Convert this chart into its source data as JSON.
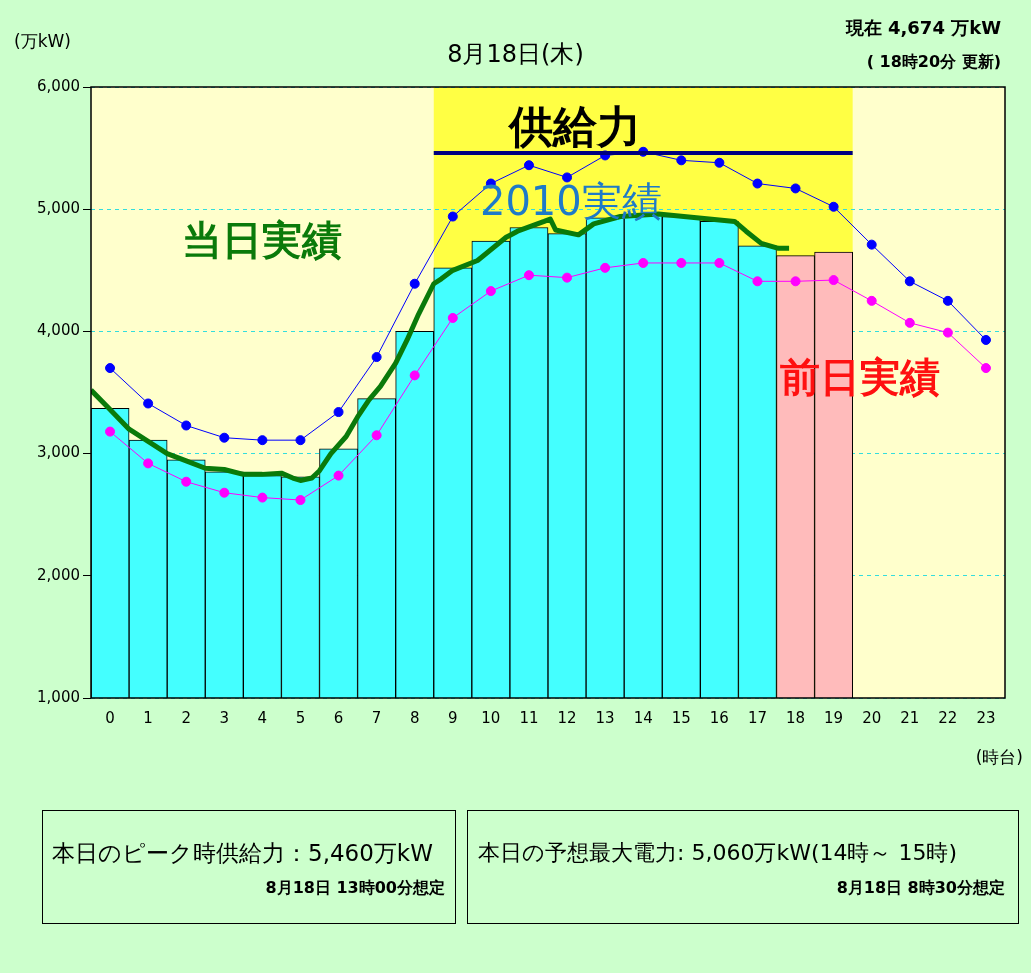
{
  "chart_data": {
    "type": "bar",
    "title": "8月18日(木)",
    "xlabel": "(時台)",
    "ylabel": "(万kW)",
    "x": [
      0.5,
      1.5,
      2.5,
      3.5,
      4.5,
      5.5,
      6.5,
      7.5,
      8.5,
      9.5,
      10.5,
      11.5,
      12.5,
      13.5,
      14.5,
      15.5,
      16.5,
      17.5,
      18.5,
      19.5,
      20.5,
      21.5,
      22.5,
      23.5
    ],
    "xlim": [
      0,
      24
    ],
    "xticks": [
      {
        "value": 0.5,
        "label": "0"
      },
      {
        "value": 1.5,
        "label": "1"
      },
      {
        "value": 2.5,
        "label": "2"
      },
      {
        "value": 3.5,
        "label": "3"
      },
      {
        "value": 4.5,
        "label": "4"
      },
      {
        "value": 5.5,
        "label": "5"
      },
      {
        "value": 6.5,
        "label": "6"
      },
      {
        "value": 7.5,
        "label": "7"
      },
      {
        "value": 8.5,
        "label": "8"
      },
      {
        "value": 9.5,
        "label": "9"
      },
      {
        "value": 10.5,
        "label": "10"
      },
      {
        "value": 11.5,
        "label": "11"
      },
      {
        "value": 12.5,
        "label": "12"
      },
      {
        "value": 13.5,
        "label": "13"
      },
      {
        "value": 14.5,
        "label": "14"
      },
      {
        "value": 15.5,
        "label": "15"
      },
      {
        "value": 16.5,
        "label": "16"
      },
      {
        "value": 17.5,
        "label": "17"
      },
      {
        "value": 18.5,
        "label": "18"
      },
      {
        "value": 19.5,
        "label": "19"
      },
      {
        "value": 20.5,
        "label": "20"
      },
      {
        "value": 21.5,
        "label": "21"
      },
      {
        "value": 22.5,
        "label": "22"
      },
      {
        "value": 23.5,
        "label": "23"
      }
    ],
    "ylim": [
      1000,
      6000
    ],
    "yticks": [
      {
        "value": 1000,
        "label": "1,000"
      },
      {
        "value": 2000,
        "label": "2,000"
      },
      {
        "value": 3000,
        "label": "3,000"
      },
      {
        "value": 4000,
        "label": "4,000"
      },
      {
        "value": 5000,
        "label": "5,000"
      },
      {
        "value": 6000,
        "label": "6,000"
      }
    ],
    "grid": "y",
    "legend": false,
    "marker": "circle",
    "bands": [
      {
        "axis": "x",
        "from": 0,
        "to": 24,
        "color": "#ffffcc"
      },
      {
        "axis": "x",
        "from": 9,
        "to": 20,
        "color": "#ffff44"
      }
    ],
    "series": [
      {
        "colors": [
          "#44ffff",
          "#44ffff",
          "#44ffff",
          "#44ffff",
          "#44ffff",
          "#44ffff",
          "#44ffff",
          "#44ffff",
          "#44ffff",
          "#44ffff",
          "#44ffff",
          "#44ffff",
          "#44ffff",
          "#44ffff",
          "#44ffff",
          "#44ffff",
          "#44ffff",
          "#44ffff",
          "#ffbbbb",
          "#ffbbbb",
          null,
          null,
          null,
          null
        ],
        "values": [
          3370,
          3110,
          2950,
          2850,
          2820,
          2810,
          3040,
          3450,
          4000,
          4520,
          4740,
          4850,
          4800,
          4930,
          4950,
          4940,
          4900,
          4700,
          4620,
          4650,
          null,
          null,
          null,
          null
        ]
      },
      {
        "name": "2010実績",
        "type": "line",
        "color": "#0000ff",
        "values": [
          3700,
          3410,
          3230,
          3130,
          3110,
          3110,
          3340,
          3790,
          4390,
          4940,
          5210,
          5360,
          5260,
          5440,
          5470,
          5400,
          5380,
          5210,
          5170,
          5020,
          4710,
          4410,
          4250,
          3930
        ]
      },
      {
        "name": "前日実績",
        "type": "line",
        "color": "#ff00ff",
        "values": [
          3180,
          2920,
          2770,
          2680,
          2640,
          2620,
          2820,
          3150,
          3640,
          4110,
          4330,
          4460,
          4440,
          4520,
          4560,
          4560,
          4560,
          4410,
          4410,
          4420,
          4250,
          4070,
          3990,
          3700
        ]
      },
      {
        "name": "当日実績",
        "type": "line",
        "color": "#0a7a0a",
        "marker": "none",
        "x": [
          0,
          0.5,
          1,
          1.5,
          2,
          2.5,
          3,
          3.5,
          4,
          4.5,
          5,
          5.3,
          5.5,
          5.8,
          6,
          6.3,
          6.7,
          7,
          7.3,
          7.6,
          8,
          8.3,
          8.6,
          9,
          9.2,
          9.5,
          10.15,
          10.9,
          11.2,
          11.9,
          12.06,
          12.2,
          12.8,
          13.2,
          13.9,
          14.9,
          15.9,
          16.9,
          17.2,
          17.6,
          18.05,
          18.33
        ],
        "values": [
          3520,
          3360,
          3200,
          3100,
          3000,
          2940,
          2880,
          2870,
          2830,
          2830,
          2840,
          2800,
          2780,
          2800,
          2860,
          3000,
          3140,
          3300,
          3440,
          3550,
          3740,
          3930,
          4140,
          4390,
          4430,
          4500,
          4580,
          4770,
          4820,
          4900,
          4920,
          4830,
          4790,
          4880,
          4940,
          4960,
          4930,
          4900,
          4820,
          4720,
          4680,
          4680
        ]
      },
      {
        "name": "供給力",
        "type": "line",
        "color": "#000080",
        "marker": "none",
        "x": [
          9,
          20
        ],
        "values": [
          5460,
          5460
        ]
      }
    ],
    "annotations": [
      "現在 4,674 万kW",
      "( 18時20分 更新)",
      "本日のピーク時供給力：5,460万kW",
      "8月18日 13時00分想定",
      "本日の予想最大電力: 5,060万kW(14時～ 15時)",
      "8月18日 8時30分想定"
    ]
  }
}
